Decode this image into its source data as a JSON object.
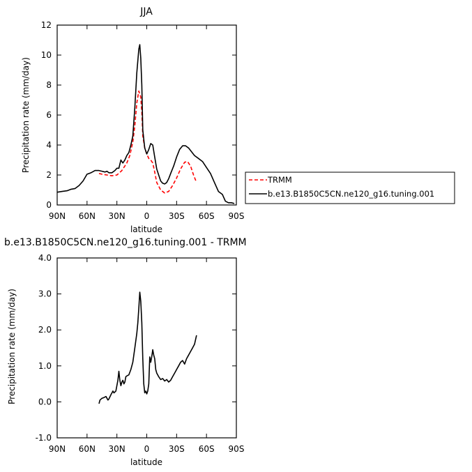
{
  "chart_data": [
    {
      "type": "line",
      "title": "JJA",
      "xlabel": "latitude",
      "ylabel": "Precipitation rate (mm/day)",
      "xlim": [
        90,
        -90
      ],
      "ylim": [
        0,
        12
      ],
      "x_ticks": [
        90,
        60,
        30,
        0,
        -30,
        -60,
        -90
      ],
      "x_tick_labels": [
        "90N",
        "60N",
        "30N",
        "0",
        "30S",
        "60S",
        "90S"
      ],
      "y_ticks": [
        0,
        2,
        4,
        6,
        8,
        10,
        12
      ],
      "y_tick_labels": [
        "0",
        "2",
        "4",
        "6",
        "8",
        "10",
        "12"
      ],
      "legend_placement": "right of plot",
      "series": [
        {
          "name": "TRMM",
          "color": "#ff0000",
          "dash": "dashed",
          "x": [
            48,
            45,
            40,
            35,
            30,
            25,
            20,
            17,
            14,
            12,
            10,
            8,
            6,
            5,
            4,
            2,
            0,
            -2,
            -4,
            -6,
            -8,
            -10,
            -14,
            -18,
            -22,
            -26,
            -30,
            -34,
            -38,
            -41,
            -44,
            -47,
            -50
          ],
          "y": [
            2.1,
            2.05,
            2.0,
            1.95,
            2.0,
            2.3,
            2.8,
            3.3,
            4.2,
            5.3,
            6.8,
            7.6,
            7.2,
            6.2,
            4.6,
            3.8,
            3.4,
            3.1,
            3.0,
            2.8,
            2.2,
            1.5,
            1.0,
            0.8,
            0.9,
            1.3,
            1.8,
            2.4,
            2.85,
            2.9,
            2.6,
            2.0,
            1.5
          ]
        },
        {
          "name": "b.e13.B1850C5CN.ne120_g16.tuning.001",
          "color": "#000000",
          "dash": "solid",
          "x": [
            90,
            85,
            80,
            76,
            72,
            68,
            64,
            60,
            56,
            52,
            48,
            45,
            42,
            40,
            38,
            35,
            32,
            30,
            28,
            26,
            24,
            22,
            20,
            18,
            16,
            14,
            12,
            10,
            8,
            7,
            6,
            5,
            4,
            2,
            0,
            -2,
            -4,
            -6,
            -8,
            -10,
            -12,
            -14,
            -16,
            -18,
            -20,
            -22,
            -24,
            -27,
            -30,
            -33,
            -36,
            -39,
            -42,
            -45,
            -48,
            -52,
            -56,
            -60,
            -64,
            -68,
            -72,
            -76,
            -79,
            -82,
            -85,
            -88
          ],
          "y": [
            0.85,
            0.9,
            0.95,
            1.05,
            1.1,
            1.3,
            1.6,
            2.05,
            2.15,
            2.3,
            2.3,
            2.25,
            2.2,
            2.25,
            2.15,
            2.15,
            2.3,
            2.45,
            2.45,
            3.0,
            2.8,
            3.0,
            3.3,
            3.5,
            4.0,
            4.6,
            6.5,
            8.8,
            10.4,
            10.7,
            9.8,
            8.0,
            5.0,
            3.8,
            3.4,
            3.7,
            4.1,
            4.0,
            3.2,
            2.4,
            2.0,
            1.6,
            1.45,
            1.4,
            1.5,
            1.75,
            2.1,
            2.6,
            3.2,
            3.7,
            3.95,
            3.95,
            3.8,
            3.55,
            3.3,
            3.1,
            2.9,
            2.5,
            2.1,
            1.5,
            0.9,
            0.7,
            0.25,
            0.15,
            0.15,
            0.1
          ]
        }
      ]
    },
    {
      "type": "line",
      "title": "b.e13.B1850C5CN.ne120_g16.tuning.001 - TRMM",
      "xlabel": "latitude",
      "ylabel": "Precipitation rate (mm/day)",
      "xlim": [
        90,
        -90
      ],
      "ylim": [
        -1.0,
        4.0
      ],
      "x_ticks": [
        90,
        60,
        30,
        0,
        -30,
        -60,
        -90
      ],
      "x_tick_labels": [
        "90N",
        "60N",
        "30N",
        "0",
        "30S",
        "60S",
        "90S"
      ],
      "y_ticks": [
        -1.0,
        0.0,
        1.0,
        2.0,
        3.0,
        4.0
      ],
      "y_tick_labels": [
        "-1.0",
        "0.0",
        "1.0",
        "2.0",
        "3.0",
        "4.0"
      ],
      "series": [
        {
          "color": "#000000",
          "dash": "solid",
          "x": [
            48,
            47,
            45,
            43,
            41,
            40,
            39,
            38,
            36,
            34,
            33,
            31,
            29,
            28,
            27,
            26,
            25,
            24,
            23,
            22,
            21,
            20,
            18,
            16,
            14,
            12,
            10,
            9,
            8,
            7,
            6,
            5,
            4,
            3,
            2,
            1,
            0,
            -1,
            -2,
            -3,
            -4,
            -5,
            -6,
            -7,
            -8,
            -9,
            -10,
            -12,
            -14,
            -16,
            -18,
            -20,
            -22,
            -24,
            -26,
            -28,
            -30,
            -32,
            -34,
            -36,
            -38,
            -40,
            -42,
            -44,
            -46,
            -48,
            -50
          ],
          "y": [
            -0.05,
            0.05,
            0.1,
            0.12,
            0.15,
            0.1,
            0.05,
            0.08,
            0.2,
            0.3,
            0.25,
            0.3,
            0.6,
            0.85,
            0.6,
            0.45,
            0.55,
            0.6,
            0.5,
            0.55,
            0.7,
            0.72,
            0.75,
            0.9,
            1.1,
            1.5,
            1.9,
            2.2,
            2.6,
            3.05,
            2.8,
            2.2,
            1.2,
            0.5,
            0.25,
            0.3,
            0.22,
            0.3,
            0.5,
            1.25,
            1.1,
            1.25,
            1.45,
            1.3,
            1.2,
            0.9,
            0.8,
            0.7,
            0.62,
            0.65,
            0.58,
            0.62,
            0.55,
            0.6,
            0.7,
            0.8,
            0.9,
            1.0,
            1.1,
            1.15,
            1.05,
            1.2,
            1.3,
            1.4,
            1.5,
            1.6,
            1.85
          ]
        }
      ]
    }
  ]
}
